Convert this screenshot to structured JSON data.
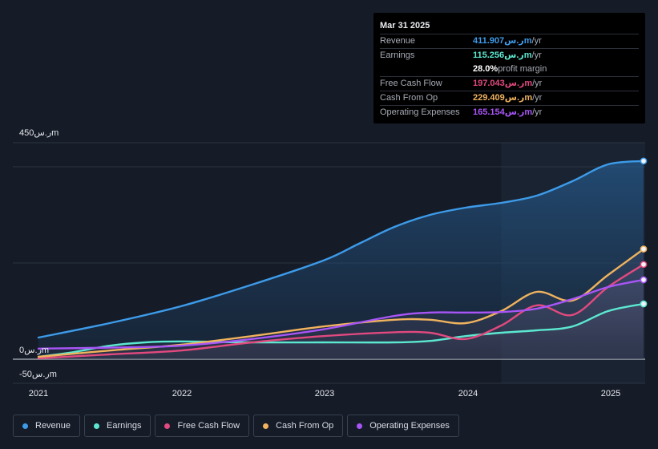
{
  "tooltip": {
    "date": "Mar 31 2025",
    "rows": [
      {
        "label": "Revenue",
        "value": "411.907ر.سm",
        "suffix": " /yr",
        "color": "#3d9be9"
      },
      {
        "label": "Earnings",
        "value": "115.256ر.سm",
        "suffix": " /yr",
        "color": "#5ce8d0"
      },
      {
        "label": "",
        "value": "28.0%",
        "suffix": " profit margin",
        "color": "#ffffff"
      },
      {
        "label": "Free Cash Flow",
        "value": "197.043ر.سm",
        "suffix": " /yr",
        "color": "#e2497f"
      },
      {
        "label": "Cash From Op",
        "value": "229.409ر.سm",
        "suffix": " /yr",
        "color": "#f0b35e"
      },
      {
        "label": "Operating Expenses",
        "value": "165.154ر.سm",
        "suffix": " /yr",
        "color": "#a855f7"
      }
    ]
  },
  "chart_data": {
    "type": "area",
    "ytick_labels": [
      "450ر.سm",
      "0ر.سm",
      "-50ر.سm"
    ],
    "ylim": [
      -50,
      450
    ],
    "xlim": [
      2021.0,
      2025.25
    ],
    "xtick_labels": [
      "2021",
      "2022",
      "2023",
      "2024",
      "2025"
    ],
    "xticks": [
      2021,
      2022,
      2023,
      2024,
      2025
    ],
    "forecast_start": 2024.25,
    "series": [
      {
        "name": "Revenue",
        "color": "#3d9be9",
        "x": [
          2021.0,
          2021.5,
          2022.0,
          2022.5,
          2023.0,
          2023.25,
          2023.5,
          2023.75,
          2024.0,
          2024.25,
          2024.5,
          2024.75,
          2025.0,
          2025.25
        ],
        "y": [
          45,
          75,
          110,
          155,
          205,
          240,
          275,
          300,
          315,
          325,
          340,
          370,
          405,
          412
        ]
      },
      {
        "name": "Earnings",
        "color": "#5ce8d0",
        "x": [
          2021.0,
          2021.25,
          2021.5,
          2021.75,
          2022.0,
          2022.5,
          2023.0,
          2023.5,
          2023.75,
          2024.0,
          2024.25,
          2024.5,
          2024.75,
          2025.0,
          2025.25
        ],
        "y": [
          5,
          15,
          28,
          35,
          37,
          35,
          35,
          35,
          38,
          48,
          55,
          60,
          68,
          100,
          115
        ]
      },
      {
        "name": "Free Cash Flow",
        "color": "#e2497f",
        "x": [
          2021.0,
          2021.5,
          2022.0,
          2022.5,
          2023.0,
          2023.5,
          2023.75,
          2024.0,
          2024.25,
          2024.5,
          2024.75,
          2025.0,
          2025.25
        ],
        "y": [
          2,
          10,
          18,
          35,
          48,
          56,
          55,
          42,
          70,
          112,
          92,
          150,
          197
        ]
      },
      {
        "name": "Cash From Op",
        "color": "#f0b35e",
        "x": [
          2021.0,
          2021.5,
          2022.0,
          2022.5,
          2023.0,
          2023.5,
          2023.75,
          2024.0,
          2024.25,
          2024.5,
          2024.75,
          2025.0,
          2025.25
        ],
        "y": [
          5,
          18,
          30,
          48,
          68,
          82,
          82,
          75,
          100,
          140,
          122,
          175,
          229
        ]
      },
      {
        "name": "Operating Expenses",
        "color": "#a855f7",
        "x": [
          2021.0,
          2021.5,
          2022.0,
          2022.5,
          2023.0,
          2023.5,
          2023.75,
          2024.0,
          2024.25,
          2024.5,
          2024.75,
          2025.0,
          2025.25
        ],
        "y": [
          22,
          24,
          28,
          42,
          62,
          90,
          97,
          97,
          98,
          105,
          125,
          150,
          165
        ]
      }
    ],
    "grid": true,
    "legend_position": "bottom"
  }
}
